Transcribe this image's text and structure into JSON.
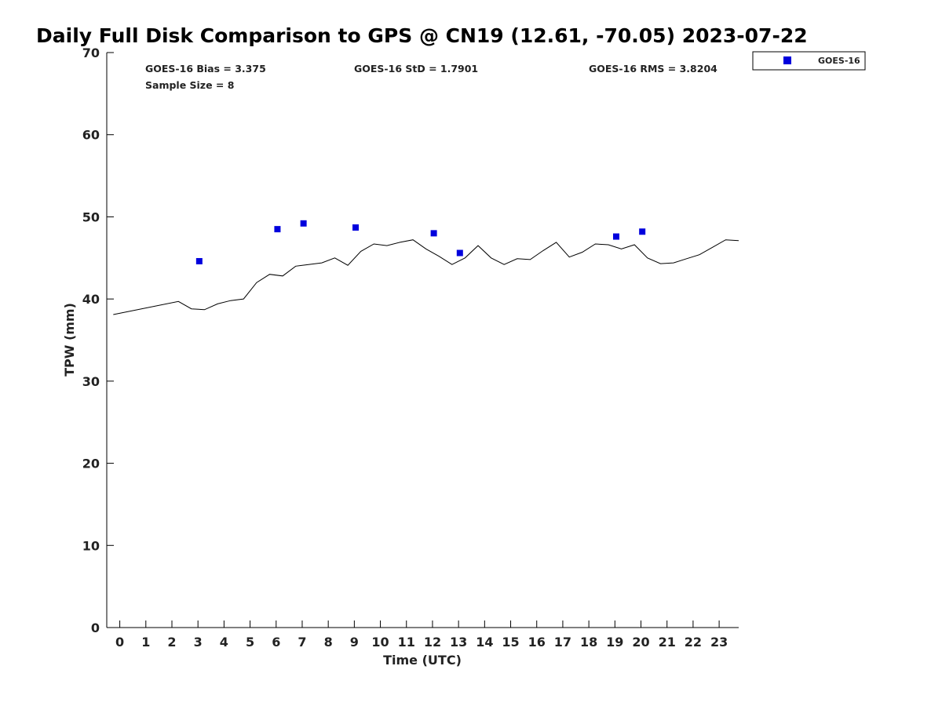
{
  "chart_data": {
    "type": "scatter",
    "title": "Daily Full Disk Comparison to GPS @ CN19 (12.61, -70.05) 2023-07-22",
    "xlabel": "Time (UTC)",
    "ylabel": "TPW (mm)",
    "xlim": [
      -0.5,
      23.75
    ],
    "ylim": [
      0,
      70
    ],
    "xticks": [
      0,
      1,
      2,
      3,
      4,
      5,
      6,
      7,
      8,
      9,
      10,
      11,
      12,
      13,
      14,
      15,
      16,
      17,
      18,
      19,
      20,
      21,
      22,
      23
    ],
    "yticks": [
      0,
      10,
      20,
      30,
      40,
      50,
      60,
      70
    ],
    "grid": false,
    "legend_position": "outside top-right",
    "stats": {
      "bias": "GOES-16 Bias = 3.375",
      "std": "GOES-16 StD = 1.7901",
      "rms": "GOES-16 RMS = 3.8204",
      "sample": "Sample Size = 8"
    },
    "series": [
      {
        "name": "GOES-16",
        "kind": "markers",
        "marker": "square",
        "color": "#0000dd",
        "x": [
          3.05,
          6.05,
          7.05,
          9.05,
          12.05,
          13.05,
          19.05,
          20.05
        ],
        "y": [
          44.6,
          48.5,
          49.2,
          48.7,
          48.0,
          45.6,
          47.6,
          48.2
        ]
      },
      {
        "kind": "line",
        "color": "#000000",
        "x": [
          -0.25,
          2.25,
          2.75,
          3.25,
          3.75,
          4.25,
          4.75,
          5.25,
          5.75,
          6.25,
          6.75,
          7.75,
          8.25,
          8.75,
          9.25,
          9.75,
          10.25,
          10.75,
          11.25,
          11.75,
          12.25,
          12.75,
          13.25,
          13.75,
          14.25,
          14.75,
          15.25,
          15.75,
          16.25,
          16.75,
          17.25,
          17.75,
          18.25,
          18.75,
          19.25,
          19.75,
          20.25,
          20.75,
          21.25,
          21.75,
          22.25,
          22.75,
          23.25,
          23.75
        ],
        "y": [
          38.1,
          39.7,
          38.8,
          38.7,
          39.4,
          39.8,
          40.0,
          42.0,
          43.0,
          42.8,
          44.0,
          44.4,
          45.0,
          44.1,
          45.8,
          46.7,
          46.5,
          46.9,
          47.2,
          46.1,
          45.2,
          44.2,
          45.0,
          46.5,
          45.0,
          44.2,
          44.9,
          44.8,
          45.9,
          46.9,
          45.1,
          45.7,
          46.7,
          46.6,
          46.1,
          46.6,
          45.0,
          44.3,
          44.4,
          44.9,
          45.4,
          46.3,
          47.2,
          47.1
        ]
      }
    ]
  }
}
